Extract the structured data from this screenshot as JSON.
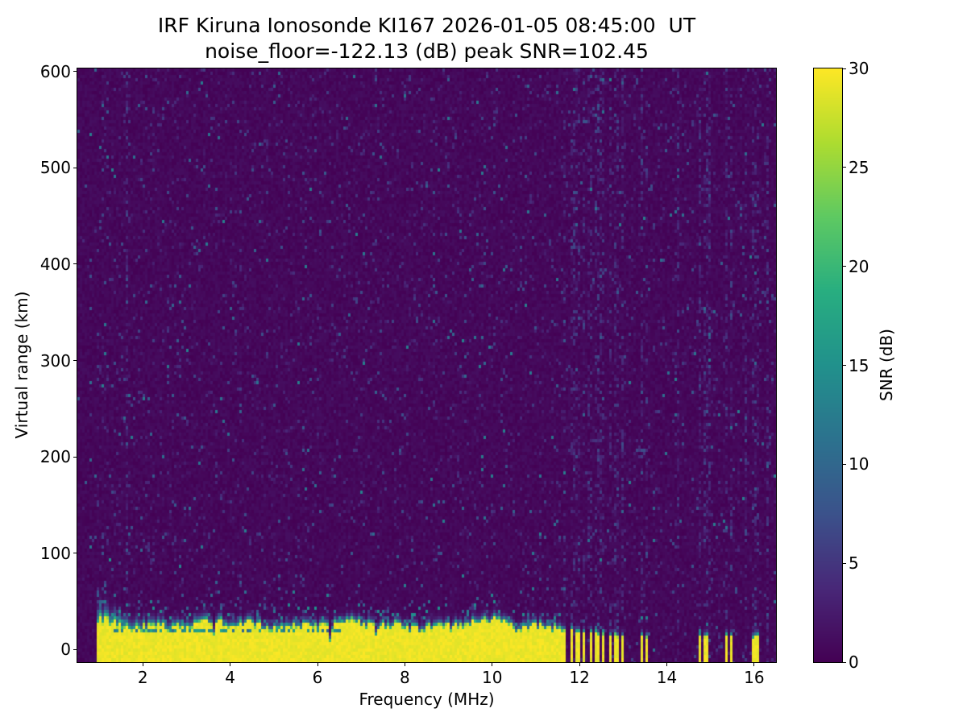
{
  "chart_data": {
    "type": "heatmap",
    "title": "IRF Kiruna Ionosonde KI167 2026-01-05 08:45:00  UT",
    "subtitle": "noise_floor=-122.13 (dB) peak SNR=102.45",
    "station": "IRF Kiruna Ionosonde KI167",
    "timestamp_ut": "2026-01-05 08:45:00",
    "noise_floor_db": -122.13,
    "peak_snr_db": 102.45,
    "xlabel": "Frequency (MHz)",
    "ylabel": "Virtual range (km)",
    "xlim": [
      0.5,
      16.5
    ],
    "ylim": [
      -13,
      603
    ],
    "xticks": [
      2,
      4,
      6,
      8,
      10,
      12,
      14,
      16
    ],
    "yticks": [
      0,
      100,
      200,
      300,
      400,
      500,
      600
    ],
    "grid": false,
    "colorbar": {
      "label": "SNR (dB)",
      "min": 0,
      "max": 30,
      "ticks": [
        0,
        5,
        10,
        15,
        20,
        25,
        30
      ]
    },
    "colormap": {
      "name": "viridis",
      "low": "#440154",
      "high": "#fde725",
      "anchors": [
        [
          68,
          1,
          84
        ],
        [
          72,
          40,
          120
        ],
        [
          59,
          82,
          139
        ],
        [
          44,
          114,
          142
        ],
        [
          33,
          145,
          140
        ],
        [
          40,
          174,
          128
        ],
        [
          94,
          201,
          98
        ],
        [
          173,
          220,
          48
        ],
        [
          253,
          231,
          37
        ]
      ]
    },
    "features": {
      "background": {
        "snr_range_db": [
          0,
          2
        ],
        "speckle_probability": 0.07,
        "speckle_snr_db": [
          2,
          13
        ]
      },
      "blank_left_edge_mhz": [
        0.5,
        0.93
      ],
      "ground_echo": {
        "freq_mhz": [
          0.93,
          11.62
        ],
        "top_km_mean": 25,
        "snr_db": 30,
        "notches": [
          [
            1.75,
            0.03,
            7
          ],
          [
            2.55,
            0.03,
            6
          ],
          [
            3.62,
            0.05,
            16
          ],
          [
            4.3,
            0.04,
            8
          ],
          [
            6.3,
            0.04,
            18
          ],
          [
            7.35,
            0.04,
            15
          ],
          [
            9.05,
            0.03,
            5
          ],
          [
            10.6,
            0.04,
            6
          ]
        ],
        "dark_line_km": 19,
        "dark_line_freq_mhz": [
          1.25,
          6.6
        ]
      },
      "intermittent_echoes": {
        "freq_mhz": [
          11.62,
          13.09
        ],
        "period_mhz": 0.148,
        "duty": 0.52,
        "top_km": [
          12,
          22
        ]
      },
      "isolated_echo_freqs_mhz": [
        13.42,
        13.53,
        14.75,
        14.9,
        15.35,
        15.47,
        16.0,
        16.1
      ],
      "rfi_columns_mhz": [
        1.62,
        11.9,
        12.2,
        12.5,
        12.8,
        13.0,
        13.45,
        14.25,
        14.75,
        15.0,
        15.35,
        15.8,
        16.05,
        16.3
      ]
    }
  },
  "colors": {
    "figure_background": "#ffffff",
    "axes_foreground": "#000000",
    "cmap_low": "#440154",
    "cmap_high": "#fde725"
  }
}
